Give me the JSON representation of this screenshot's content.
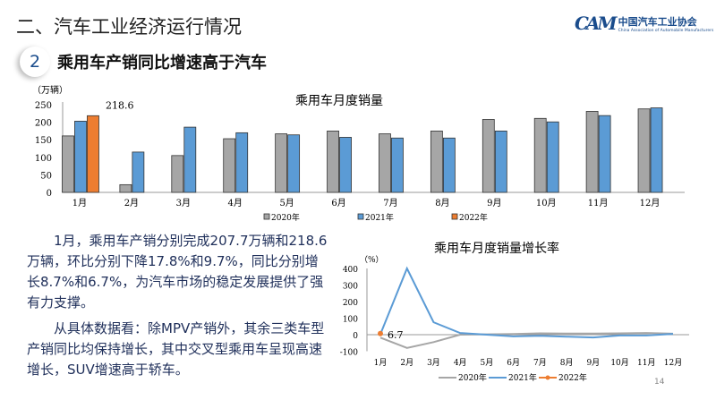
{
  "header": {
    "title": "二、汽车工业经济运行情况",
    "logo_cn": "中国汽车工业协会",
    "logo_en": "China Association of Automobile Manufacturers",
    "logo_mark": "CAM"
  },
  "section": {
    "number": "2",
    "title": "乘用车产销同比增速高于汽车"
  },
  "paragraphs": [
    "1月，乘用车产销分别完成207.7万辆和218.6万辆，环比分别下降17.8%和9.7%，同比分别增长8.7%和6.7%，为汽车市场的稳定发展提供了强有力支撑。",
    "从具体数据看：除MPV产销外，其余三类车型产销同比均保持增长，其中交叉型乘用车呈现高速增长，SUV增速高于轿车。"
  ],
  "page_number": "14",
  "chart_data": [
    {
      "type": "bar",
      "title": "乘用车月度销量",
      "ylabel": "（万辆）",
      "ylim": [
        0,
        250
      ],
      "yticks": [
        "0",
        "50",
        "100",
        "150",
        "200",
        "250"
      ],
      "categories": [
        "1月",
        "2月",
        "3月",
        "4月",
        "5月",
        "6月",
        "7月",
        "8月",
        "9月",
        "10月",
        "11月",
        "12月"
      ],
      "series": [
        {
          "name": "2020年",
          "color": "#a6a6a6",
          "values": [
            161,
            22,
            105,
            153,
            167,
            175,
            167,
            175,
            208,
            211,
            231,
            238
          ]
        },
        {
          "name": "2021年",
          "color": "#5b9bd5",
          "values": [
            203,
            115,
            186,
            170,
            164,
            157,
            155,
            155,
            175,
            201,
            219,
            241
          ]
        },
        {
          "name": "2022年",
          "color": "#ed7d31",
          "values": [
            218.6,
            null,
            null,
            null,
            null,
            null,
            null,
            null,
            null,
            null,
            null,
            null
          ]
        }
      ],
      "data_labels": [
        "218.6"
      ],
      "legend": "bottom"
    },
    {
      "type": "line",
      "title": "乘用车月度销量增长率",
      "ylabel": "（%）",
      "ylim": [
        -100,
        400
      ],
      "yticks": [
        "-100",
        "0",
        "100",
        "200",
        "300",
        "400"
      ],
      "categories": [
        "1月",
        "2月",
        "3月",
        "4月",
        "5月",
        "6月",
        "7月",
        "8月",
        "9月",
        "10月",
        "11月",
        "12月"
      ],
      "series": [
        {
          "name": "2020年",
          "color": "#a6a6a6",
          "values": [
            -18,
            -80,
            -45,
            0,
            2,
            4,
            8,
            7,
            7,
            8,
            10,
            6
          ]
        },
        {
          "name": "2021年",
          "color": "#5b9bd5",
          "values": [
            3,
            400,
            75,
            10,
            0,
            -10,
            -7,
            -12,
            -17,
            -5,
            -5,
            5
          ]
        },
        {
          "name": "2022年",
          "color": "#ed7d31",
          "values": [
            6.7,
            null,
            null,
            null,
            null,
            null,
            null,
            null,
            null,
            null,
            null,
            null
          ]
        }
      ],
      "data_labels": [
        "6.7"
      ],
      "legend": "bottom"
    }
  ]
}
